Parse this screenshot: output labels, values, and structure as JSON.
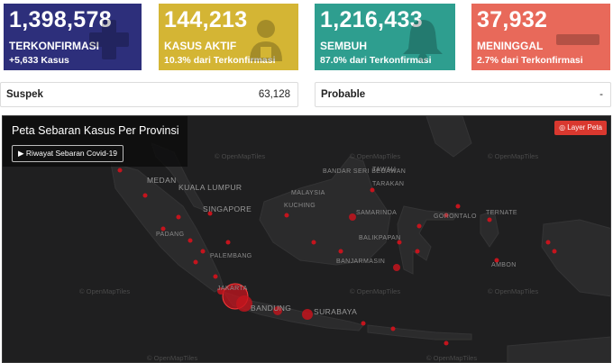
{
  "stats": {
    "confirmed": {
      "value": "1,398,578",
      "label": "TERKONFIRMASI",
      "sub": "+5,633 Kasus",
      "color": "#2d2f7b",
      "icon": "plus-icon"
    },
    "active": {
      "value": "144,213",
      "label": "KASUS AKTIF",
      "sub": "10.3% dari Terkonfirmasi",
      "color": "#d4b534",
      "icon": "patient-icon"
    },
    "recovered": {
      "value": "1,216,433",
      "label": "SEMBUH",
      "sub": "87.0% dari Terkonfirmasi",
      "color": "#2e9e8f",
      "icon": "bell-icon"
    },
    "deaths": {
      "value": "37,932",
      "label": "MENINGGAL",
      "sub": "2.7% dari Terkonfirmasi",
      "color": "#e8695a",
      "icon": "minus-icon"
    }
  },
  "suspek": {
    "label": "Suspek",
    "value": "63,128"
  },
  "probable": {
    "label": "Probable",
    "value": "-"
  },
  "map": {
    "title": "Peta Sebaran Kasus Per Provinsi",
    "history_button": "Riwayat Sebaran Covid-19",
    "layer_button": "Layer Peta",
    "watermark": "© OpenMapTiles",
    "cities": {
      "medan": "MEDAN",
      "kuala_lumpur": "KUALA LUMPUR",
      "singapore": "SINGAPORE",
      "padang": "PADANG",
      "palembang": "PALEMBANG",
      "jakarta": "JAKARTA",
      "bandung": "BANDUNG",
      "surabaya": "SURABAYA",
      "malaysia": "MALAYSIA",
      "kuching": "KUCHING",
      "bandar_seri_begawan": "BANDAR SERI BEGAWAN",
      "tawau": "TAWAU",
      "tarakan": "TARAKAN",
      "samarinda": "SAMARINDA",
      "balikpapan": "BALIKPAPAN",
      "banjarmasin": "BANJARMASIN",
      "gorontalo": "GORONTALO",
      "ternate": "TERNATE",
      "ambon": "AMBON"
    }
  }
}
